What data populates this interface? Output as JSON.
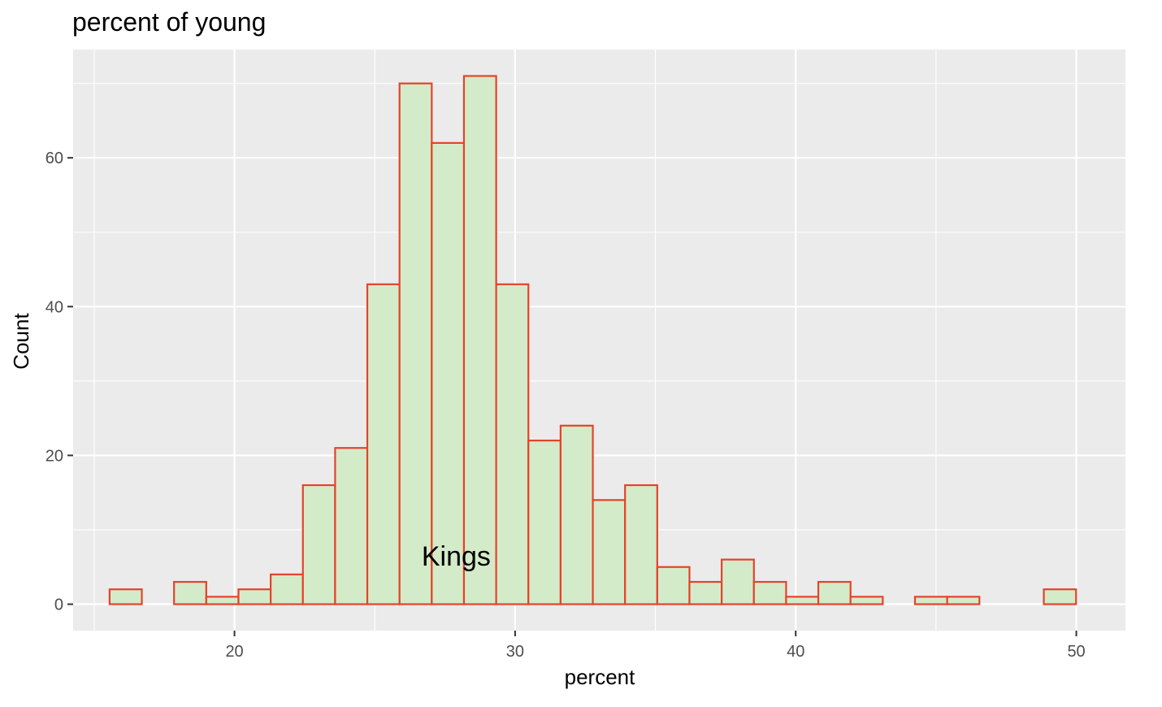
{
  "chart_data": {
    "type": "bar",
    "title": "percent of young",
    "xlabel": "percent",
    "ylabel": "Count",
    "xlim": [
      14.25,
      51.75
    ],
    "ylim": [
      -3.55,
      74.55
    ],
    "x_ticks": [
      20,
      30,
      40,
      50
    ],
    "x_minor_ticks": [
      15,
      25,
      35,
      45
    ],
    "y_ticks": [
      0,
      20,
      40,
      60
    ],
    "y_minor_ticks": [
      10,
      30,
      50,
      70
    ],
    "grid": true,
    "legend": "none",
    "bin_start": 15.55,
    "bin_width": 1.148,
    "values": [
      2,
      0,
      3,
      1,
      2,
      4,
      16,
      21,
      43,
      70,
      62,
      71,
      43,
      22,
      24,
      14,
      16,
      5,
      3,
      6,
      3,
      1,
      3,
      1,
      0,
      1,
      1,
      0,
      0,
      2
    ],
    "annotation": {
      "text": "Kings",
      "x": 27.9,
      "y": 6.5
    },
    "colors": {
      "panel": "#ebebeb",
      "grid": "#ffffff",
      "bar_fill": "#d4ebc9",
      "bar_stroke": "#e4432b"
    }
  }
}
